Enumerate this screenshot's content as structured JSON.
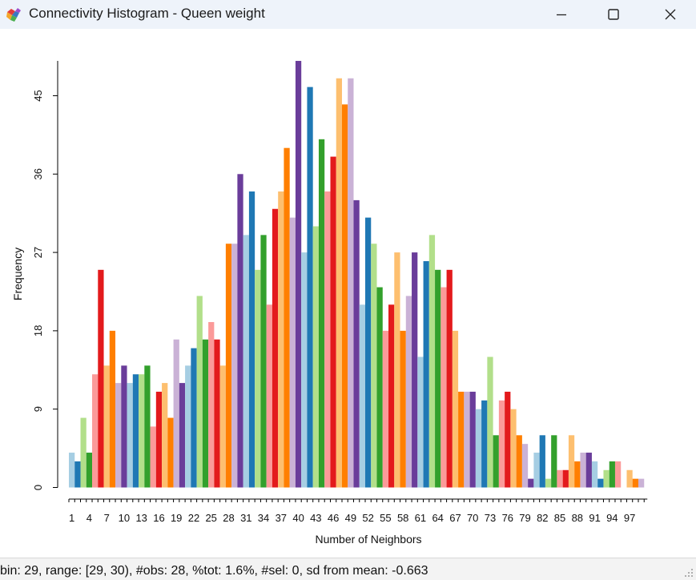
{
  "window": {
    "title": "Connectivity Histogram - Queen weight",
    "icon": "geoda-app-icon",
    "controls": [
      "minimize-icon",
      "maximize-icon",
      "close-icon"
    ]
  },
  "status": {
    "text": "bin: 29, range: [29, 30), #obs: 28, %tot: 1.6%, #sel: 0, sd from mean: -0.663"
  },
  "chart_data": {
    "type": "bar",
    "xlabel": "Number of Neighbors",
    "ylabel": "Frequency",
    "ylim": [
      0,
      49
    ],
    "y_ticks": [
      0,
      9,
      18,
      27,
      36,
      45
    ],
    "x_start": 1,
    "x_tick_labels": [
      "1",
      "4",
      "7",
      "10",
      "13",
      "16",
      "19",
      "22",
      "25",
      "28",
      "31",
      "34",
      "37",
      "40",
      "43",
      "46",
      "49",
      "52",
      "55",
      "58",
      "61",
      "64",
      "67",
      "70",
      "73",
      "76",
      "79",
      "82",
      "85",
      "88",
      "91",
      "94",
      "97"
    ],
    "values": [
      4,
      3,
      8,
      4,
      13,
      25,
      14,
      18,
      12,
      14,
      12,
      13,
      13,
      14,
      7,
      11,
      12,
      8,
      17,
      12,
      14,
      16,
      22,
      17,
      19,
      17,
      14,
      28,
      28,
      36,
      29,
      34,
      25,
      29,
      21,
      32,
      34,
      39,
      31,
      49,
      27,
      46,
      30,
      40,
      34,
      38,
      47,
      44,
      47,
      33,
      21,
      31,
      28,
      23,
      18,
      21,
      27,
      18,
      22,
      27,
      15,
      26,
      29,
      25,
      23,
      25,
      18,
      11,
      11,
      11,
      9,
      10,
      15,
      6,
      10,
      11,
      9,
      6,
      5,
      1,
      4,
      6,
      1,
      6,
      2,
      2,
      6,
      3,
      4,
      4,
      3,
      1,
      2,
      3,
      3,
      0,
      2,
      1,
      1
    ],
    "palette": [
      "#a6cee3",
      "#1f78b4",
      "#b2df8a",
      "#33a02c",
      "#fb9a99",
      "#e31a1c",
      "#fdbf6f",
      "#ff7f00",
      "#cab2d6",
      "#6a3d9a"
    ],
    "grid": false
  }
}
